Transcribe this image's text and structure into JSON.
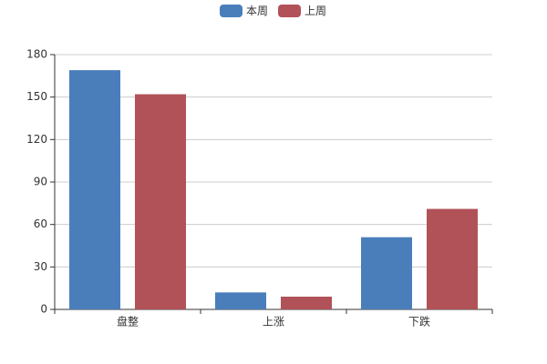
{
  "chart_data": {
    "type": "bar",
    "categories": [
      "盘整",
      "上涨",
      "下跌"
    ],
    "series": [
      {
        "name": "本周",
        "color": "#4a7ebb",
        "values": [
          169,
          12,
          51
        ]
      },
      {
        "name": "上周",
        "color": "#b05258",
        "values": [
          152,
          9,
          71
        ]
      }
    ],
    "ylim": [
      0,
      180
    ],
    "yticks": [
      0,
      30,
      60,
      90,
      120,
      150,
      180
    ],
    "grid": true,
    "legend": "top"
  }
}
